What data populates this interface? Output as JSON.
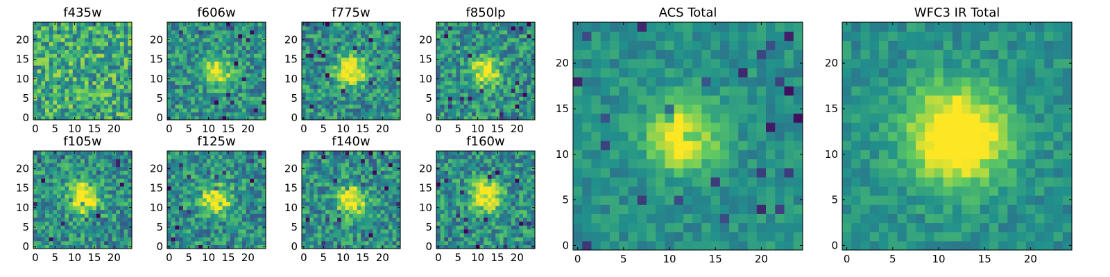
{
  "chart_data": [
    {
      "type": "heatmap",
      "title": "f435w",
      "xticks": [
        "0",
        "5",
        "10",
        "15",
        "20"
      ],
      "yticks": [
        "0",
        "5",
        "10",
        "15",
        "20"
      ],
      "xlim": [
        0,
        25
      ],
      "ylim": [
        0,
        25
      ],
      "grid": false,
      "source_center": [
        12,
        12
      ],
      "source_peak": 0.05
    },
    {
      "type": "heatmap",
      "title": "f606w",
      "xticks": [
        "0",
        "5",
        "10",
        "15",
        "20"
      ],
      "yticks": [
        "0",
        "5",
        "10",
        "15",
        "20"
      ],
      "xlim": [
        0,
        25
      ],
      "ylim": [
        0,
        25
      ],
      "grid": false,
      "source_center": [
        12,
        12
      ],
      "source_peak": 0.55
    },
    {
      "type": "heatmap",
      "title": "f775w",
      "xticks": [
        "0",
        "5",
        "10",
        "15",
        "20"
      ],
      "yticks": [
        "0",
        "5",
        "10",
        "15",
        "20"
      ],
      "xlim": [
        0,
        25
      ],
      "ylim": [
        0,
        25
      ],
      "grid": false,
      "source_center": [
        12,
        12
      ],
      "source_peak": 0.6
    },
    {
      "type": "heatmap",
      "title": "f850lp",
      "xticks": [
        "0",
        "5",
        "10",
        "15",
        "20"
      ],
      "yticks": [
        "0",
        "5",
        "10",
        "15",
        "20"
      ],
      "xlim": [
        0,
        25
      ],
      "ylim": [
        0,
        25
      ],
      "grid": false,
      "source_center": [
        12,
        12
      ],
      "source_peak": 0.55
    },
    {
      "type": "heatmap",
      "title": "ACS Total",
      "xticks": [
        "0",
        "5",
        "10",
        "15",
        "20"
      ],
      "yticks": [
        "0",
        "5",
        "10",
        "15",
        "20"
      ],
      "xlim": [
        0,
        25
      ],
      "ylim": [
        0,
        25
      ],
      "grid": false,
      "source_center": [
        11.5,
        12
      ],
      "source_peak": 0.6
    },
    {
      "type": "heatmap",
      "title": "WFC3 IR Total",
      "xticks": [
        "0",
        "5",
        "10",
        "15",
        "20"
      ],
      "yticks": [
        "0",
        "5",
        "10",
        "15",
        "20"
      ],
      "xlim": [
        0,
        25
      ],
      "ylim": [
        0,
        25
      ],
      "grid": false,
      "source_center": [
        12,
        12
      ],
      "source_peak": 0.75
    },
    {
      "type": "heatmap",
      "title": "f105w",
      "xticks": [
        "0",
        "5",
        "10",
        "15",
        "20"
      ],
      "yticks": [
        "0",
        "5",
        "10",
        "15",
        "20"
      ],
      "xlim": [
        0,
        25
      ],
      "ylim": [
        0,
        25
      ],
      "grid": false,
      "source_center": [
        12,
        12.5
      ],
      "source_peak": 0.7
    },
    {
      "type": "heatmap",
      "title": "f125w",
      "xticks": [
        "0",
        "5",
        "10",
        "15",
        "20"
      ],
      "yticks": [
        "0",
        "5",
        "10",
        "15",
        "20"
      ],
      "xlim": [
        0,
        25
      ],
      "ylim": [
        0,
        25
      ],
      "grid": false,
      "source_center": [
        12,
        12
      ],
      "source_peak": 0.6
    },
    {
      "type": "heatmap",
      "title": "f140w",
      "xticks": [
        "0",
        "5",
        "10",
        "15",
        "20"
      ],
      "yticks": [
        "0",
        "5",
        "10",
        "15",
        "20"
      ],
      "xlim": [
        0,
        25
      ],
      "ylim": [
        0,
        25
      ],
      "grid": false,
      "source_center": [
        12,
        12
      ],
      "source_peak": 0.6
    },
    {
      "type": "heatmap",
      "title": "f160w",
      "xticks": [
        "0",
        "5",
        "10",
        "15",
        "20"
      ],
      "yticks": [
        "0",
        "5",
        "10",
        "15",
        "20"
      ],
      "xlim": [
        0,
        25
      ],
      "ylim": [
        0,
        25
      ],
      "grid": false,
      "source_center": [
        12,
        13
      ],
      "source_peak": 0.65
    }
  ],
  "colormap": [
    "#440154",
    "#3b528b",
    "#21918c",
    "#5ec962",
    "#fde725"
  ]
}
